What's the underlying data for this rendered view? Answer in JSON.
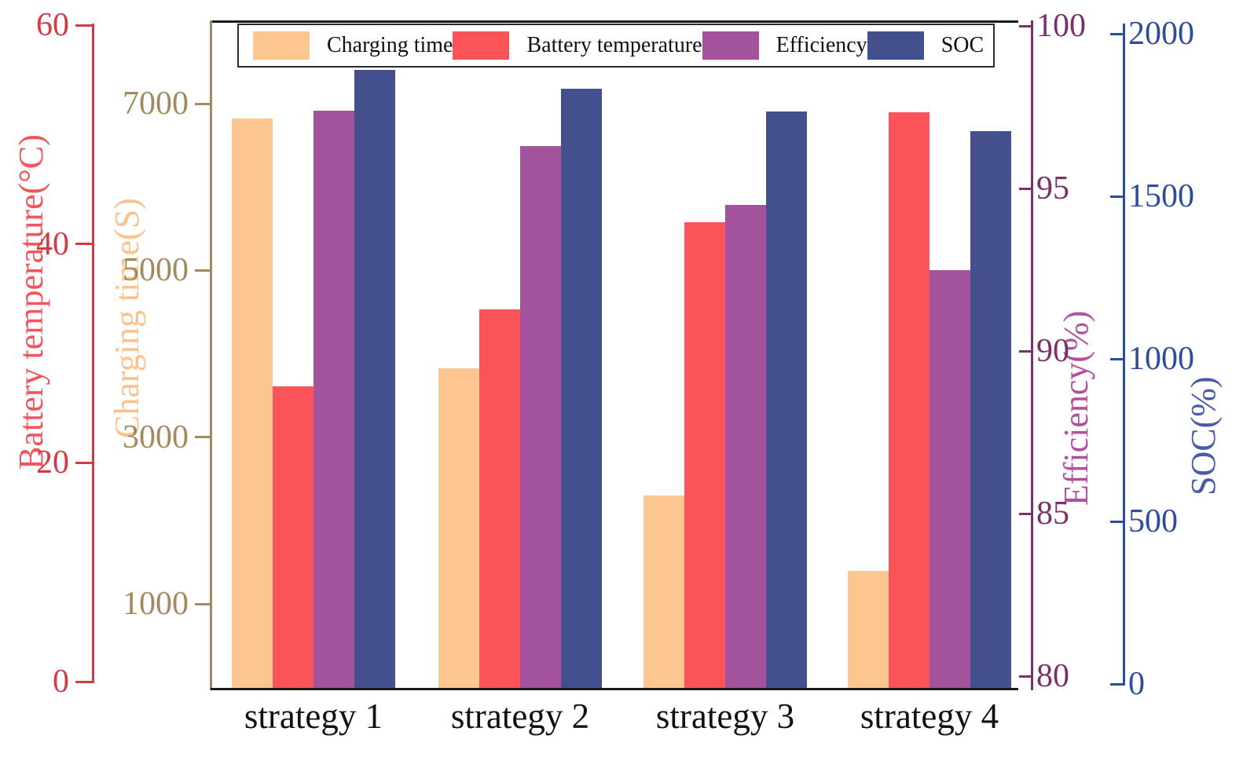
{
  "chart_data": {
    "type": "bar",
    "title": "",
    "grid": false,
    "legend_position": "top-inside",
    "categories": [
      "strategy 1",
      "strategy 2",
      "strategy 3",
      "strategy 4"
    ],
    "series": [
      {
        "name": "Charging time",
        "axis": "charging_time",
        "color": "#FCC690",
        "values": [
          6820,
          3830,
          2300,
          1400
        ]
      },
      {
        "name": "Battery temperature",
        "axis": "battery_temperature",
        "color": "#FA5459",
        "values": [
          27,
          34,
          42,
          52
        ]
      },
      {
        "name": "Efficiency",
        "axis": "efficiency",
        "color": "#A3539B",
        "values": [
          97.4,
          96.3,
          94.5,
          92.5
        ]
      },
      {
        "name": "SOC",
        "axis": "soc",
        "color": "#444F8D",
        "values": [
          1890,
          1830,
          1760,
          1700
        ]
      }
    ],
    "axes": [
      {
        "id": "battery_temperature",
        "label": "Battery temperature(°C)",
        "side": "left-outer",
        "ticks": [
          0,
          20,
          40,
          60
        ],
        "range": [
          0,
          60
        ],
        "color": "#D23B45",
        "label_color": "#F3555B"
      },
      {
        "id": "charging_time",
        "label": "Charging time(S)",
        "side": "left-inner",
        "ticks": [
          1000,
          3000,
          5000,
          7000
        ],
        "range": [
          0,
          8000
        ],
        "color": "#A18A5E",
        "label_color": "#FCC28B"
      },
      {
        "id": "efficiency",
        "label": "Efficiency(%)",
        "side": "right-inner",
        "ticks": [
          80,
          85,
          90,
          95,
          100
        ],
        "range": [
          80,
          100
        ],
        "color": "#7B3168",
        "label_color": "#B14FA0"
      },
      {
        "id": "soc",
        "label": "SOC(%)",
        "side": "right-outer",
        "ticks": [
          0,
          500,
          1000,
          1500,
          2000
        ],
        "range": [
          0,
          2000
        ],
        "color": "#2F4C9C",
        "label_color": "#4A5AA8"
      }
    ]
  }
}
